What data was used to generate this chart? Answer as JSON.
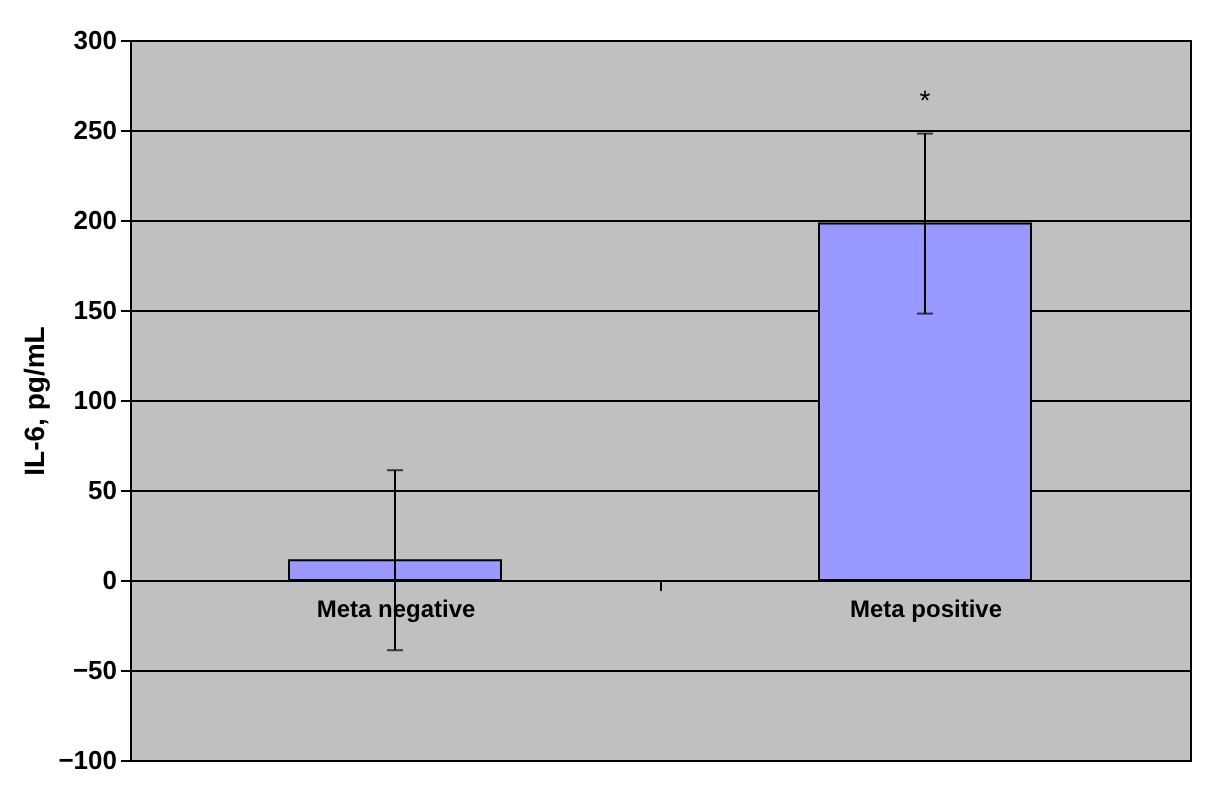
{
  "chart_data": {
    "type": "bar",
    "ylabel": "IL-6, pg/mL",
    "categories": [
      "Meta negative",
      "Meta positive"
    ],
    "values": [
      11,
      198
    ],
    "errors": [
      50,
      50
    ],
    "color": "#9999ff",
    "ylim": [
      -100,
      300
    ],
    "yticks": [
      -100,
      -50,
      0,
      50,
      100,
      150,
      200,
      250,
      300
    ],
    "grid": "y",
    "annotations": [
      "*"
    ]
  }
}
